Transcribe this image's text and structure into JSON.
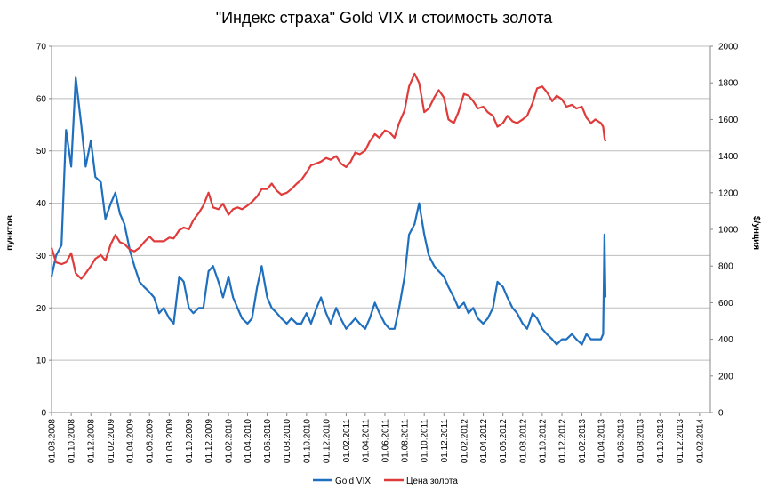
{
  "chart_data": {
    "type": "line",
    "title": "\"Индекс страха\" Gold VIX и стоимость золота",
    "ylabel_left": "пунктов",
    "ylabel_right": "$/унция",
    "ylim_left": [
      0,
      70
    ],
    "ylim_right": [
      0,
      2000
    ],
    "yticks_left": [
      "0",
      "10",
      "20",
      "30",
      "40",
      "50",
      "60",
      "70"
    ],
    "yticks_right": [
      "0",
      "200",
      "400",
      "600",
      "800",
      "1000",
      "1200",
      "1400",
      "1600",
      "1800",
      "2000"
    ],
    "grid": "horizontal",
    "legend_position": "bottom",
    "x": [
      "01.08.2008",
      "01.10.2008",
      "01.12.2008",
      "01.02.2009",
      "01.04.2009",
      "01.06.2009",
      "01.08.2009",
      "01.10.2009",
      "01.12.2009",
      "01.02.2010",
      "01.04.2010",
      "01.06.2010",
      "01.08.2010",
      "01.10.2010",
      "01.12.2010",
      "01.02.2011",
      "01.04.2011",
      "01.06.2011",
      "01.08.2011",
      "01.10.2011",
      "01.12.2011",
      "01.02.2012",
      "01.04.2012",
      "01.06.2012",
      "01.08.2012",
      "01.10.2012",
      "01.12.2012",
      "01.02.2013",
      "01.04.2013",
      "01.06.2013",
      "01.08.2013",
      "01.10.2013",
      "01.12.2013",
      "01.02.2014"
    ],
    "series": [
      {
        "name": "Gold VIX",
        "axis": "left",
        "color": "#1f6fbf",
        "points": [
          [
            "01.08.2008",
            26
          ],
          [
            "15.08.2008",
            30
          ],
          [
            "01.09.2008",
            32
          ],
          [
            "15.09.2008",
            54
          ],
          [
            "01.10.2008",
            47
          ],
          [
            "15.10.2008",
            64
          ],
          [
            "01.11.2008",
            55
          ],
          [
            "15.11.2008",
            47
          ],
          [
            "01.12.2008",
            52
          ],
          [
            "15.12.2008",
            45
          ],
          [
            "01.01.2009",
            44
          ],
          [
            "15.01.2009",
            37
          ],
          [
            "01.02.2009",
            40
          ],
          [
            "15.02.2009",
            42
          ],
          [
            "01.03.2009",
            38
          ],
          [
            "15.03.2009",
            36
          ],
          [
            "01.04.2009",
            31
          ],
          [
            "15.04.2009",
            28
          ],
          [
            "01.05.2009",
            25
          ],
          [
            "15.05.2009",
            24
          ],
          [
            "01.06.2009",
            23
          ],
          [
            "15.06.2009",
            22
          ],
          [
            "01.07.2009",
            19
          ],
          [
            "15.07.2009",
            20
          ],
          [
            "01.08.2009",
            18
          ],
          [
            "15.08.2009",
            17
          ],
          [
            "01.09.2009",
            26
          ],
          [
            "15.09.2009",
            25
          ],
          [
            "01.10.2009",
            20
          ],
          [
            "15.10.2009",
            19
          ],
          [
            "01.11.2009",
            20
          ],
          [
            "15.11.2009",
            20
          ],
          [
            "01.12.2009",
            27
          ],
          [
            "15.12.2009",
            28
          ],
          [
            "01.01.2010",
            25
          ],
          [
            "15.01.2010",
            22
          ],
          [
            "01.02.2010",
            26
          ],
          [
            "15.02.2010",
            22
          ],
          [
            "01.03.2010",
            20
          ],
          [
            "15.03.2010",
            18
          ],
          [
            "01.04.2010",
            17
          ],
          [
            "15.04.2010",
            18
          ],
          [
            "01.05.2010",
            24
          ],
          [
            "15.05.2010",
            28
          ],
          [
            "01.06.2010",
            22
          ],
          [
            "15.06.2010",
            20
          ],
          [
            "01.07.2010",
            19
          ],
          [
            "15.07.2010",
            18
          ],
          [
            "01.08.2010",
            17
          ],
          [
            "15.08.2010",
            18
          ],
          [
            "01.09.2010",
            17
          ],
          [
            "15.09.2010",
            17
          ],
          [
            "01.10.2010",
            19
          ],
          [
            "15.10.2010",
            17
          ],
          [
            "01.11.2010",
            20
          ],
          [
            "15.11.2010",
            22
          ],
          [
            "01.12.2010",
            19
          ],
          [
            "15.12.2010",
            17
          ],
          [
            "01.01.2011",
            20
          ],
          [
            "15.01.2011",
            18
          ],
          [
            "01.02.2011",
            16
          ],
          [
            "15.02.2011",
            17
          ],
          [
            "01.03.2011",
            18
          ],
          [
            "15.03.2011",
            17
          ],
          [
            "01.04.2011",
            16
          ],
          [
            "15.04.2011",
            18
          ],
          [
            "01.05.2011",
            21
          ],
          [
            "15.05.2011",
            19
          ],
          [
            "01.06.2011",
            17
          ],
          [
            "15.06.2011",
            16
          ],
          [
            "01.07.2011",
            16
          ],
          [
            "15.07.2011",
            20
          ],
          [
            "01.08.2011",
            26
          ],
          [
            "15.08.2011",
            34
          ],
          [
            "01.09.2011",
            36
          ],
          [
            "15.09.2011",
            40
          ],
          [
            "01.10.2011",
            34
          ],
          [
            "15.10.2011",
            30
          ],
          [
            "01.11.2011",
            28
          ],
          [
            "15.11.2011",
            27
          ],
          [
            "01.12.2011",
            26
          ],
          [
            "15.12.2011",
            24
          ],
          [
            "01.01.2012",
            22
          ],
          [
            "15.01.2012",
            20
          ],
          [
            "01.02.2012",
            21
          ],
          [
            "15.02.2012",
            19
          ],
          [
            "01.03.2012",
            20
          ],
          [
            "15.03.2012",
            18
          ],
          [
            "01.04.2012",
            17
          ],
          [
            "15.04.2012",
            18
          ],
          [
            "01.05.2012",
            20
          ],
          [
            "15.05.2012",
            25
          ],
          [
            "01.06.2012",
            24
          ],
          [
            "15.06.2012",
            22
          ],
          [
            "01.07.2012",
            20
          ],
          [
            "15.07.2012",
            19
          ],
          [
            "01.08.2012",
            17
          ],
          [
            "15.08.2012",
            16
          ],
          [
            "01.09.2012",
            19
          ],
          [
            "15.09.2012",
            18
          ],
          [
            "01.10.2012",
            16
          ],
          [
            "15.10.2012",
            15
          ],
          [
            "01.11.2012",
            14
          ],
          [
            "15.11.2012",
            13
          ],
          [
            "01.12.2012",
            14
          ],
          [
            "15.12.2012",
            14
          ],
          [
            "01.01.2013",
            15
          ],
          [
            "15.01.2013",
            14
          ],
          [
            "01.02.2013",
            13
          ],
          [
            "15.02.2013",
            15
          ],
          [
            "01.03.2013",
            14
          ],
          [
            "15.03.2013",
            14
          ],
          [
            "01.04.2013",
            14
          ],
          [
            "08.04.2013",
            15
          ],
          [
            "12.04.2013",
            34
          ],
          [
            "15.04.2013",
            22
          ]
        ]
      },
      {
        "name": "Цена золота",
        "axis": "right",
        "color": "#e03b3b",
        "points": [
          [
            "01.08.2008",
            900
          ],
          [
            "15.08.2008",
            820
          ],
          [
            "01.09.2008",
            810
          ],
          [
            "15.09.2008",
            820
          ],
          [
            "01.10.2008",
            870
          ],
          [
            "15.10.2008",
            760
          ],
          [
            "01.11.2008",
            730
          ],
          [
            "15.11.2008",
            760
          ],
          [
            "01.12.2008",
            800
          ],
          [
            "15.12.2008",
            840
          ],
          [
            "01.01.2009",
            860
          ],
          [
            "15.01.2009",
            830
          ],
          [
            "01.02.2009",
            920
          ],
          [
            "15.02.2009",
            970
          ],
          [
            "01.03.2009",
            930
          ],
          [
            "15.03.2009",
            920
          ],
          [
            "01.04.2009",
            890
          ],
          [
            "15.04.2009",
            880
          ],
          [
            "01.05.2009",
            900
          ],
          [
            "15.05.2009",
            930
          ],
          [
            "01.06.2009",
            960
          ],
          [
            "15.06.2009",
            935
          ],
          [
            "01.07.2009",
            935
          ],
          [
            "15.07.2009",
            935
          ],
          [
            "01.08.2009",
            955
          ],
          [
            "15.08.2009",
            950
          ],
          [
            "01.09.2009",
            995
          ],
          [
            "15.09.2009",
            1010
          ],
          [
            "01.10.2009",
            1000
          ],
          [
            "15.10.2009",
            1050
          ],
          [
            "01.11.2009",
            1090
          ],
          [
            "15.11.2009",
            1130
          ],
          [
            "01.12.2009",
            1200
          ],
          [
            "15.12.2009",
            1120
          ],
          [
            "01.01.2010",
            1110
          ],
          [
            "15.01.2010",
            1140
          ],
          [
            "01.02.2010",
            1080
          ],
          [
            "15.02.2010",
            1110
          ],
          [
            "01.03.2010",
            1120
          ],
          [
            "15.03.2010",
            1110
          ],
          [
            "01.04.2010",
            1130
          ],
          [
            "15.04.2010",
            1150
          ],
          [
            "01.05.2010",
            1180
          ],
          [
            "15.05.2010",
            1220
          ],
          [
            "01.06.2010",
            1220
          ],
          [
            "15.06.2010",
            1250
          ],
          [
            "01.07.2010",
            1210
          ],
          [
            "15.07.2010",
            1190
          ],
          [
            "01.08.2010",
            1200
          ],
          [
            "15.08.2010",
            1220
          ],
          [
            "01.09.2010",
            1250
          ],
          [
            "15.09.2010",
            1270
          ],
          [
            "01.10.2010",
            1310
          ],
          [
            "15.10.2010",
            1350
          ],
          [
            "01.11.2010",
            1360
          ],
          [
            "15.11.2010",
            1370
          ],
          [
            "01.12.2010",
            1390
          ],
          [
            "15.12.2010",
            1380
          ],
          [
            "01.01.2011",
            1400
          ],
          [
            "15.01.2011",
            1360
          ],
          [
            "01.02.2011",
            1340
          ],
          [
            "15.02.2011",
            1370
          ],
          [
            "01.03.2011",
            1420
          ],
          [
            "15.03.2011",
            1410
          ],
          [
            "01.04.2011",
            1430
          ],
          [
            "15.04.2011",
            1480
          ],
          [
            "01.05.2011",
            1520
          ],
          [
            "15.05.2011",
            1500
          ],
          [
            "01.06.2011",
            1540
          ],
          [
            "15.06.2011",
            1530
          ],
          [
            "01.07.2011",
            1500
          ],
          [
            "15.07.2011",
            1580
          ],
          [
            "01.08.2011",
            1650
          ],
          [
            "15.08.2011",
            1780
          ],
          [
            "01.09.2011",
            1850
          ],
          [
            "15.09.2011",
            1800
          ],
          [
            "01.10.2011",
            1640
          ],
          [
            "15.10.2011",
            1660
          ],
          [
            "01.11.2011",
            1720
          ],
          [
            "15.11.2011",
            1760
          ],
          [
            "01.12.2011",
            1720
          ],
          [
            "15.12.2011",
            1600
          ],
          [
            "01.01.2012",
            1580
          ],
          [
            "15.01.2012",
            1640
          ],
          [
            "01.02.2012",
            1740
          ],
          [
            "15.02.2012",
            1730
          ],
          [
            "01.03.2012",
            1700
          ],
          [
            "15.03.2012",
            1660
          ],
          [
            "01.04.2012",
            1670
          ],
          [
            "15.04.2012",
            1640
          ],
          [
            "01.05.2012",
            1620
          ],
          [
            "15.05.2012",
            1560
          ],
          [
            "01.06.2012",
            1580
          ],
          [
            "15.06.2012",
            1620
          ],
          [
            "01.07.2012",
            1590
          ],
          [
            "15.07.2012",
            1580
          ],
          [
            "01.08.2012",
            1600
          ],
          [
            "15.08.2012",
            1620
          ],
          [
            "01.09.2012",
            1690
          ],
          [
            "15.09.2012",
            1770
          ],
          [
            "01.10.2012",
            1780
          ],
          [
            "15.10.2012",
            1750
          ],
          [
            "01.11.2012",
            1700
          ],
          [
            "15.11.2012",
            1730
          ],
          [
            "01.12.2012",
            1710
          ],
          [
            "15.12.2012",
            1670
          ],
          [
            "01.01.2013",
            1680
          ],
          [
            "15.01.2013",
            1660
          ],
          [
            "01.02.2013",
            1670
          ],
          [
            "15.02.2013",
            1610
          ],
          [
            "01.03.2013",
            1580
          ],
          [
            "15.03.2013",
            1600
          ],
          [
            "01.04.2013",
            1580
          ],
          [
            "08.04.2013",
            1560
          ],
          [
            "12.04.2013",
            1500
          ],
          [
            "15.04.2013",
            1480
          ]
        ]
      }
    ]
  }
}
